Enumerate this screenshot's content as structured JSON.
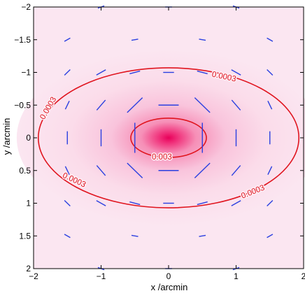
{
  "chart_data": {
    "type": "contour",
    "xlabel": "x /arcmin",
    "ylabel": "y /arcmin",
    "xlim": [
      -2,
      2
    ],
    "ylim": [
      -2,
      2
    ],
    "y_axis_reversed": true,
    "grid": false,
    "xticks": [
      -2,
      -1,
      0,
      1,
      2
    ],
    "xtick_labels": [
      "−2",
      "−1",
      "0",
      "1",
      "2"
    ],
    "yticks": [
      -2,
      -1.5,
      -1,
      -0.5,
      0,
      0.5,
      1,
      1.5,
      2
    ],
    "ytick_labels": [
      "−2",
      "−1.5",
      "−1",
      "−0.5",
      "0",
      "0.5",
      "1",
      "1.5",
      "2"
    ],
    "colors": {
      "background_map": "#fbe6f1",
      "peak": "#e8005a",
      "contour": "#e0141e",
      "sticks": "#2a3fe0",
      "axes": "#000000"
    },
    "density_map": {
      "center": [
        0,
        0
      ],
      "description_scale": [
        0.75,
        0.45
      ]
    },
    "contours": [
      {
        "level": 0.003,
        "label": "0.003",
        "center": [
          0,
          0
        ],
        "semi_axes": [
          0.56,
          0.3
        ],
        "labels_at": [
          {
            "x": -0.1,
            "y": 0.3,
            "angle": 0
          }
        ]
      },
      {
        "level": 0.0003,
        "label": "0.0003",
        "center": [
          0,
          0
        ],
        "semi_axes": [
          1.93,
          1.07
        ],
        "labels_at": [
          {
            "x": 0.82,
            "y": -0.93,
            "angle": 12
          },
          {
            "x": -1.78,
            "y": -0.45,
            "angle": -60
          },
          {
            "x": -1.4,
            "y": 0.65,
            "angle": 25
          },
          {
            "x": 1.25,
            "y": 0.83,
            "angle": -22
          }
        ]
      }
    ],
    "sticks": [
      {
        "x": 0,
        "y": -2,
        "len": 0.1,
        "angle": 0
      },
      {
        "x": -1,
        "y": -2,
        "len": 0.1,
        "angle": -20
      },
      {
        "x": 1,
        "y": -2,
        "len": 0.1,
        "angle": 20
      },
      {
        "x": -1.5,
        "y": -1.5,
        "len": 0.1,
        "angle": -30
      },
      {
        "x": -0.5,
        "y": -1.5,
        "len": 0.1,
        "angle": -10
      },
      {
        "x": 0.5,
        "y": -1.5,
        "len": 0.1,
        "angle": 10
      },
      {
        "x": 1.5,
        "y": -1.5,
        "len": 0.1,
        "angle": 30
      },
      {
        "x": -1.5,
        "y": -1,
        "len": 0.12,
        "angle": -45
      },
      {
        "x": -1,
        "y": -1,
        "len": 0.16,
        "angle": -30
      },
      {
        "x": -0.5,
        "y": -1,
        "len": 0.16,
        "angle": -15
      },
      {
        "x": 0,
        "y": -1,
        "len": 0.16,
        "angle": 0
      },
      {
        "x": 0.5,
        "y": -1,
        "len": 0.16,
        "angle": 15
      },
      {
        "x": 1,
        "y": -1,
        "len": 0.16,
        "angle": 30
      },
      {
        "x": 1.5,
        "y": -1,
        "len": 0.12,
        "angle": 45
      },
      {
        "x": -1.5,
        "y": -0.5,
        "len": 0.14,
        "angle": -65
      },
      {
        "x": -1,
        "y": -0.5,
        "len": 0.2,
        "angle": -50
      },
      {
        "x": -0.5,
        "y": -0.5,
        "len": 0.32,
        "angle": -45
      },
      {
        "x": 0,
        "y": -0.5,
        "len": 0.3,
        "angle": 0
      },
      {
        "x": 0.5,
        "y": -0.5,
        "len": 0.32,
        "angle": 45
      },
      {
        "x": 1,
        "y": -0.5,
        "len": 0.2,
        "angle": 50
      },
      {
        "x": 1.5,
        "y": -0.5,
        "len": 0.14,
        "angle": 65
      },
      {
        "x": -1.5,
        "y": 0,
        "len": 0.2,
        "angle": 90
      },
      {
        "x": -1,
        "y": 0,
        "len": 0.26,
        "angle": 90
      },
      {
        "x": -0.5,
        "y": 0,
        "len": 0.46,
        "angle": 90
      },
      {
        "x": 0.5,
        "y": 0,
        "len": 0.46,
        "angle": 90
      },
      {
        "x": 1,
        "y": 0,
        "len": 0.26,
        "angle": 90
      },
      {
        "x": 1.5,
        "y": 0,
        "len": 0.2,
        "angle": 90
      },
      {
        "x": -1.5,
        "y": 0.5,
        "len": 0.14,
        "angle": 65
      },
      {
        "x": -1,
        "y": 0.5,
        "len": 0.2,
        "angle": 50
      },
      {
        "x": -0.5,
        "y": 0.5,
        "len": 0.32,
        "angle": 45
      },
      {
        "x": 0,
        "y": 0.5,
        "len": 0.3,
        "angle": 0
      },
      {
        "x": 0.5,
        "y": 0.5,
        "len": 0.32,
        "angle": -45
      },
      {
        "x": 1,
        "y": 0.5,
        "len": 0.2,
        "angle": -50
      },
      {
        "x": 1.5,
        "y": 0.5,
        "len": 0.14,
        "angle": -65
      },
      {
        "x": -1.5,
        "y": 1,
        "len": 0.12,
        "angle": 45
      },
      {
        "x": -1,
        "y": 1,
        "len": 0.16,
        "angle": 30
      },
      {
        "x": -0.5,
        "y": 1,
        "len": 0.16,
        "angle": 15
      },
      {
        "x": 0,
        "y": 1,
        "len": 0.16,
        "angle": 0
      },
      {
        "x": 0.5,
        "y": 1,
        "len": 0.16,
        "angle": -15
      },
      {
        "x": 1,
        "y": 1,
        "len": 0.16,
        "angle": -30
      },
      {
        "x": 1.5,
        "y": 1,
        "len": 0.12,
        "angle": -45
      },
      {
        "x": -1.5,
        "y": 1.5,
        "len": 0.1,
        "angle": 30
      },
      {
        "x": -0.5,
        "y": 1.5,
        "len": 0.1,
        "angle": 10
      },
      {
        "x": 0.5,
        "y": 1.5,
        "len": 0.1,
        "angle": -10
      },
      {
        "x": 1.5,
        "y": 1.5,
        "len": 0.1,
        "angle": -30
      },
      {
        "x": -1,
        "y": 2,
        "len": 0.1,
        "angle": 20
      },
      {
        "x": 0,
        "y": 2,
        "len": 0.1,
        "angle": 0
      },
      {
        "x": 1,
        "y": 2,
        "len": 0.1,
        "angle": -20
      }
    ]
  }
}
